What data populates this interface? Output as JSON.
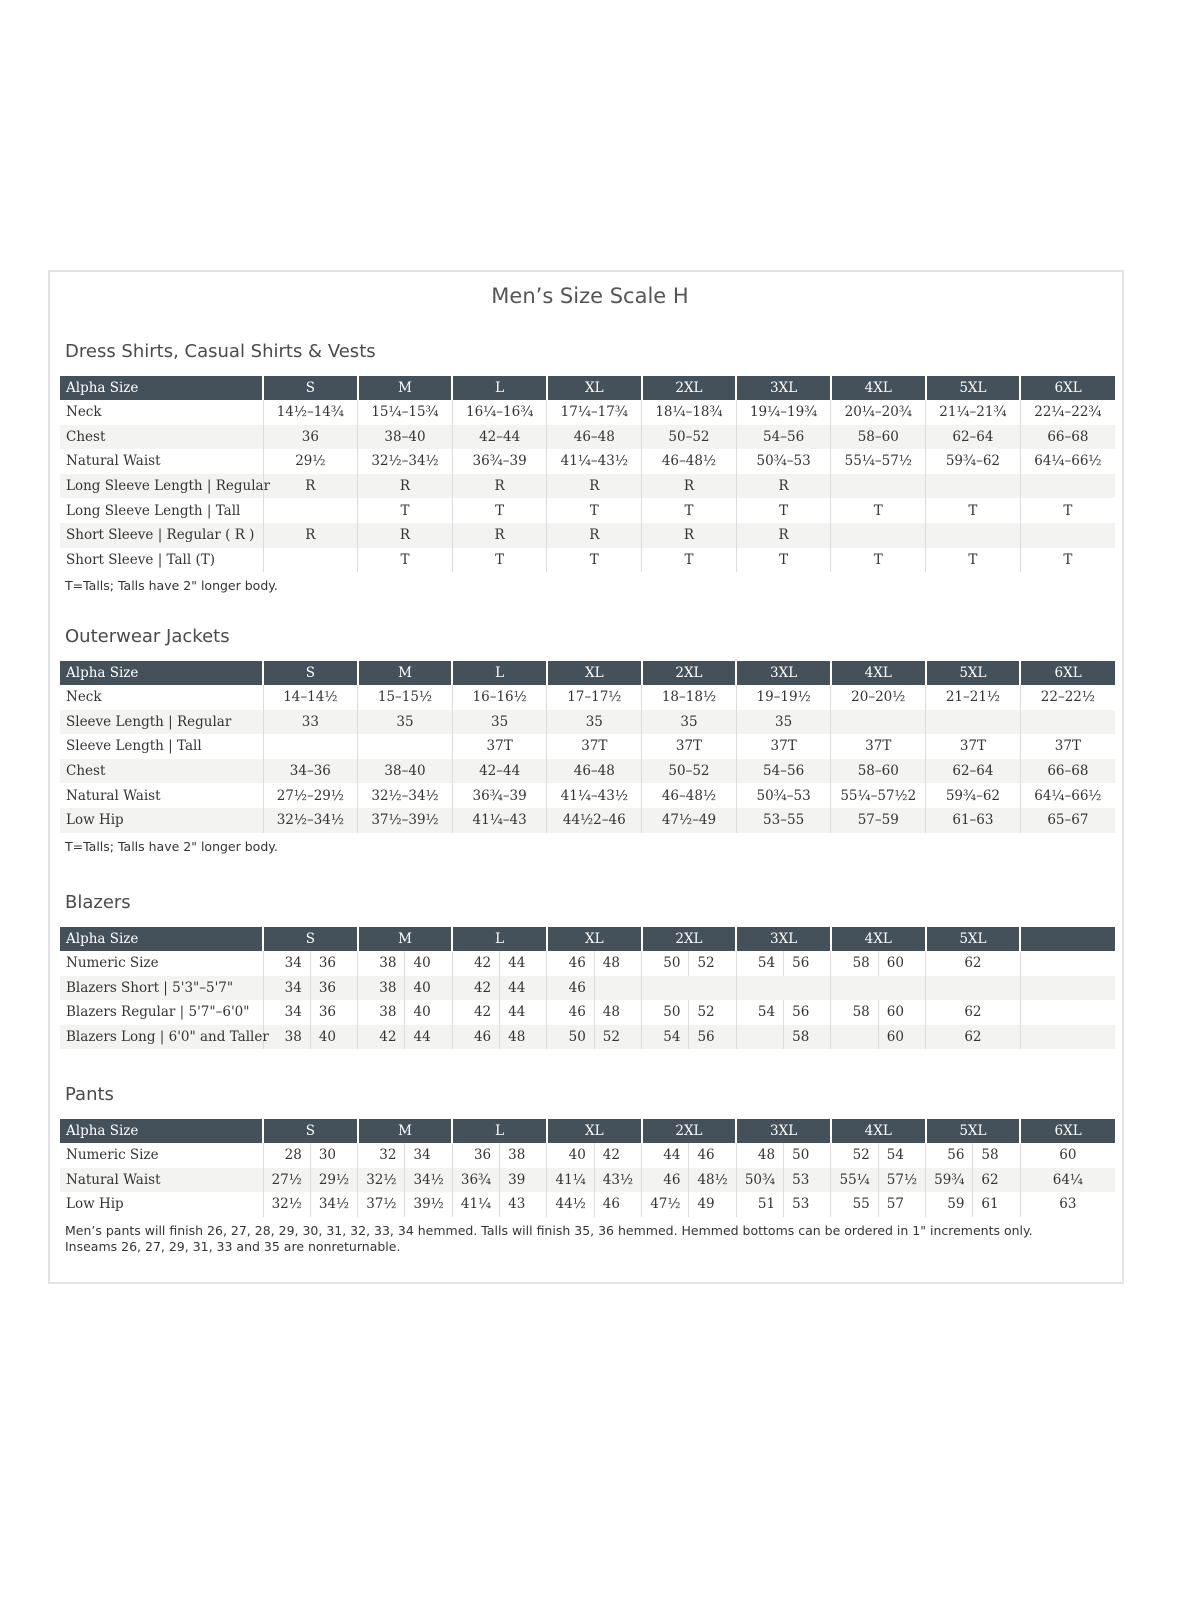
{
  "title": "Men’s Size Scale H",
  "sections": [
    {
      "heading": "Dress Shirts, Casual Shirts & Vests",
      "header": [
        "Alpha Size",
        "S",
        "M",
        "L",
        "XL",
        "2XL",
        "3XL",
        "4XL",
        "5XL",
        "6XL"
      ],
      "rows": [
        [
          "Neck",
          "14½–14¾",
          "15¼–15¾",
          "16¼–16¾",
          "17¼–17¾",
          "18¼–18¾",
          "19¼–19¾",
          "20¼–20¾",
          "21¼–21¾",
          "22¼–22¾"
        ],
        [
          "Chest",
          "36",
          "38–40",
          "42–44",
          "46–48",
          "50–52",
          "54–56",
          "58–60",
          "62–64",
          "66–68"
        ],
        [
          "Natural Waist",
          "29½",
          "32½–34½",
          "36¾–39",
          "41¼–43½",
          "46–48½",
          "50¾–53",
          "55¼–57½",
          "59¾–62",
          "64¼–66½"
        ],
        [
          "Long Sleeve Length | Regular",
          "R",
          "R",
          "R",
          "R",
          "R",
          "R",
          "",
          "",
          ""
        ],
        [
          "Long Sleeve Length | Tall",
          "",
          "T",
          "T",
          "T",
          "T",
          "T",
          "T",
          "T",
          "T"
        ],
        [
          "Short Sleeve | Regular ( R )",
          "R",
          "R",
          "R",
          "R",
          "R",
          "R",
          "",
          "",
          ""
        ],
        [
          "Short Sleeve | Tall (T)",
          "",
          "T",
          "T",
          "T",
          "T",
          "T",
          "T",
          "T",
          "T"
        ]
      ],
      "notes": [
        "T=Talls; Talls have 2\" longer body."
      ]
    },
    {
      "heading": "Outerwear Jackets",
      "header": [
        "Alpha Size",
        "S",
        "M",
        "L",
        "XL",
        "2XL",
        "3XL",
        "4XL",
        "5XL",
        "6XL"
      ],
      "rows": [
        [
          "Neck",
          "14–14½",
          "15–15½",
          "16–16½",
          "17–17½",
          "18–18½",
          "19–19½",
          "20–20½",
          "21–21½",
          "22–22½"
        ],
        [
          "Sleeve Length | Regular",
          "33",
          "35",
          "35",
          "35",
          "35",
          "35",
          "",
          "",
          ""
        ],
        [
          "Sleeve Length | Tall",
          "",
          "",
          "37T",
          "37T",
          "37T",
          "37T",
          "37T",
          "37T",
          "37T"
        ],
        [
          "Chest",
          "34–36",
          "38–40",
          "42–44",
          "46–48",
          "50–52",
          "54–56",
          "58–60",
          "62–64",
          "66–68"
        ],
        [
          "Natural Waist",
          "27½–29½",
          "32½–34½",
          "36¾–39",
          "41¼–43½",
          "46–48½",
          "50¾–53",
          "55¼–57½2",
          "59¾–62",
          "64¼–66½"
        ],
        [
          "Low Hip",
          "32½–34½",
          "37½–39½",
          "41¼–43",
          "44½2–46",
          "47½–49",
          "53–55",
          "57–59",
          "61–63",
          "65–67"
        ]
      ],
      "notes": [
        "T=Talls; Talls have 2\" longer body."
      ]
    },
    {
      "heading": "Blazers",
      "header": [
        "Alpha Size",
        "S",
        "M",
        "L",
        "XL",
        "2XL",
        "3XL",
        "4XL",
        "5XL",
        ""
      ],
      "rows": [
        [
          "Numeric Size",
          [
            "34",
            "36"
          ],
          [
            "38",
            "40"
          ],
          [
            "42",
            "44"
          ],
          [
            "46",
            "48"
          ],
          [
            "50",
            "52"
          ],
          [
            "54",
            "56"
          ],
          [
            "58",
            "60"
          ],
          "62",
          ""
        ],
        [
          "Blazers Short | 5'3\"–5'7\"",
          [
            "34",
            "36"
          ],
          [
            "38",
            "40"
          ],
          [
            "42",
            "44"
          ],
          [
            "46",
            ""
          ],
          "",
          "",
          "",
          "",
          ""
        ],
        [
          "Blazers Regular | 5'7\"–6'0\"",
          [
            "34",
            "36"
          ],
          [
            "38",
            "40"
          ],
          [
            "42",
            "44"
          ],
          [
            "46",
            "48"
          ],
          [
            "50",
            "52"
          ],
          [
            "54",
            "56"
          ],
          [
            "58",
            "60"
          ],
          "62",
          ""
        ],
        [
          "Blazers Long | 6'0\" and Taller",
          [
            "38",
            "40"
          ],
          [
            "42",
            "44"
          ],
          [
            "46",
            "48"
          ],
          [
            "50",
            "52"
          ],
          [
            "54",
            "56"
          ],
          [
            "",
            "58"
          ],
          [
            "",
            "60"
          ],
          "62",
          ""
        ]
      ],
      "notes": []
    },
    {
      "heading": "Pants",
      "header": [
        "Alpha Size",
        "S",
        "M",
        "L",
        "XL",
        "2XL",
        "3XL",
        "4XL",
        "5XL",
        "6XL"
      ],
      "rows": [
        [
          "Numeric Size",
          [
            "28",
            "30"
          ],
          [
            "32",
            "34"
          ],
          [
            "36",
            "38"
          ],
          [
            "40",
            "42"
          ],
          [
            "44",
            "46"
          ],
          [
            "48",
            "50"
          ],
          [
            "52",
            "54"
          ],
          [
            "56",
            "58"
          ],
          "60"
        ],
        [
          "Natural Waist",
          [
            "27½",
            "29½"
          ],
          [
            "32½",
            "34½"
          ],
          [
            "36¾",
            "39"
          ],
          [
            "41¼",
            "43½"
          ],
          [
            "46",
            "48½"
          ],
          [
            "50¾",
            "53"
          ],
          [
            "55¼",
            "57½"
          ],
          [
            "59¾",
            "62"
          ],
          "64¼"
        ],
        [
          "Low Hip",
          [
            "32½",
            "34½"
          ],
          [
            "37½",
            "39½"
          ],
          [
            "41¼",
            "43"
          ],
          [
            "44½",
            "46"
          ],
          [
            "47½",
            "49"
          ],
          [
            "51",
            "53"
          ],
          [
            "55",
            "57"
          ],
          [
            "59",
            "61"
          ],
          "63"
        ]
      ],
      "notes": [
        "Men’s pants will finish 26, 27, 28, 29, 30, 31, 32, 33, 34 hemmed. Talls will finish 35, 36 hemmed. Hemmed bottoms can be ordered in 1\" increments only.",
        "Inseams 26, 27, 29, 31, 33 and 35 are nonreturnable."
      ]
    }
  ]
}
